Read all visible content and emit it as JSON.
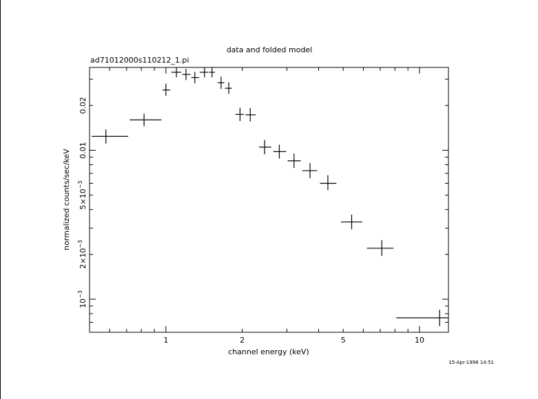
{
  "chart_data": {
    "type": "scatter",
    "title": "data and folded model",
    "subtitle": "ad71012000s110212_1.pi",
    "xlabel": "channel energy (keV)",
    "ylabel": "normalized counts/sec/keV",
    "timestamp": "15-Apr-1998 14:51",
    "x_scale": "log",
    "y_scale": "log",
    "xlim": [
      0.5,
      13
    ],
    "ylim": [
      0.0006,
      0.036
    ],
    "x_ticks": [
      {
        "value": 1,
        "label": "1"
      },
      {
        "value": 2,
        "label": "2"
      },
      {
        "value": 5,
        "label": "5"
      },
      {
        "value": 10,
        "label": "10"
      }
    ],
    "y_ticks": [
      {
        "value": 0.001,
        "label": "10",
        "exp": "−3"
      },
      {
        "value": 0.002,
        "label": "2×10",
        "exp": "−3"
      },
      {
        "value": 0.005,
        "label": "5×10",
        "exp": "−3"
      },
      {
        "value": 0.01,
        "label": "0.01",
        "exp": ""
      },
      {
        "value": 0.02,
        "label": "0.02",
        "exp": ""
      }
    ],
    "color": "#000000",
    "points": [
      {
        "x": 0.58,
        "xlo": 0.51,
        "xhi": 0.71,
        "y": 0.0124,
        "ylo": 0.0111,
        "yhi": 0.0138
      },
      {
        "x": 0.82,
        "xlo": 0.72,
        "xhi": 0.96,
        "y": 0.016,
        "ylo": 0.0145,
        "yhi": 0.0176
      },
      {
        "x": 1.0,
        "xlo": 0.97,
        "xhi": 1.04,
        "y": 0.0254,
        "ylo": 0.0232,
        "yhi": 0.028
      },
      {
        "x": 1.1,
        "xlo": 1.05,
        "xhi": 1.15,
        "y": 0.0334,
        "ylo": 0.0309,
        "yhi": 0.0362
      },
      {
        "x": 1.2,
        "xlo": 1.16,
        "xhi": 1.25,
        "y": 0.0323,
        "ylo": 0.0296,
        "yhi": 0.0352
      },
      {
        "x": 1.3,
        "xlo": 1.26,
        "xhi": 1.35,
        "y": 0.0308,
        "ylo": 0.0282,
        "yhi": 0.0336
      },
      {
        "x": 1.42,
        "xlo": 1.36,
        "xhi": 1.47,
        "y": 0.0334,
        "ylo": 0.0309,
        "yhi": 0.0362
      },
      {
        "x": 1.52,
        "xlo": 1.48,
        "xhi": 1.56,
        "y": 0.0334,
        "ylo": 0.0309,
        "yhi": 0.0362
      },
      {
        "x": 1.65,
        "xlo": 1.6,
        "xhi": 1.7,
        "y": 0.0284,
        "ylo": 0.0258,
        "yhi": 0.0312
      },
      {
        "x": 1.77,
        "xlo": 1.71,
        "xhi": 1.82,
        "y": 0.0261,
        "ylo": 0.0239,
        "yhi": 0.0286
      },
      {
        "x": 1.96,
        "xlo": 1.88,
        "xhi": 2.03,
        "y": 0.0174,
        "ylo": 0.0157,
        "yhi": 0.0193
      },
      {
        "x": 2.15,
        "xlo": 2.06,
        "xhi": 2.26,
        "y": 0.0173,
        "ylo": 0.0156,
        "yhi": 0.0192
      },
      {
        "x": 2.45,
        "xlo": 2.33,
        "xhi": 2.6,
        "y": 0.0105,
        "ylo": 0.0094,
        "yhi": 0.0117
      },
      {
        "x": 2.8,
        "xlo": 2.65,
        "xhi": 2.98,
        "y": 0.0098,
        "ylo": 0.0088,
        "yhi": 0.0109
      },
      {
        "x": 3.2,
        "xlo": 3.02,
        "xhi": 3.4,
        "y": 0.0085,
        "ylo": 0.0076,
        "yhi": 0.0095
      },
      {
        "x": 3.7,
        "xlo": 3.45,
        "xhi": 3.95,
        "y": 0.0073,
        "ylo": 0.0065,
        "yhi": 0.0082
      },
      {
        "x": 4.35,
        "xlo": 4.05,
        "xhi": 4.7,
        "y": 0.006,
        "ylo": 0.0054,
        "yhi": 0.0068
      },
      {
        "x": 5.4,
        "xlo": 4.9,
        "xhi": 5.95,
        "y": 0.0033,
        "ylo": 0.00295,
        "yhi": 0.0037
      },
      {
        "x": 7.1,
        "xlo": 6.2,
        "xhi": 7.9,
        "y": 0.0022,
        "ylo": 0.00195,
        "yhi": 0.0025
      },
      {
        "x": 12.0,
        "xlo": 8.1,
        "xhi": 13.0,
        "y": 0.00075,
        "ylo": 0.00066,
        "yhi": 0.00085
      }
    ]
  }
}
